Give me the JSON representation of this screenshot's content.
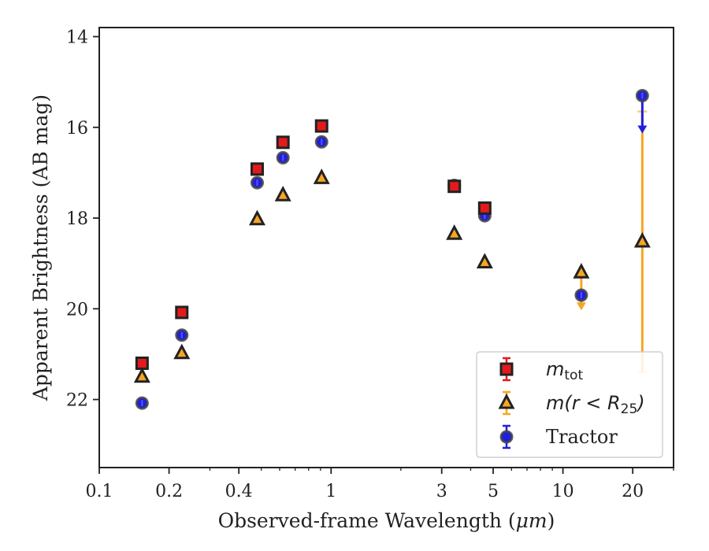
{
  "chart_data": {
    "type": "scatter",
    "xscale": "log",
    "xlabel_prefix": "Observed-frame Wavelength (",
    "xlabel_unit": "μm",
    "xlabel_suffix": ")",
    "ylabel": "Apparent Brightness (AB mag)",
    "xlim": [
      0.1,
      30
    ],
    "ylim": [
      23.5,
      13.8
    ],
    "y_inverted": true,
    "xticks": [
      {
        "value": 0.1,
        "label": "0.1"
      },
      {
        "value": 0.2,
        "label": "0.2"
      },
      {
        "value": 0.4,
        "label": "0.4"
      },
      {
        "value": 1,
        "label": "1"
      },
      {
        "value": 3,
        "label": "3"
      },
      {
        "value": 5,
        "label": "5"
      },
      {
        "value": 10,
        "label": "10"
      },
      {
        "value": 20,
        "label": "20"
      }
    ],
    "yticks": [
      {
        "value": 14,
        "label": "14"
      },
      {
        "value": 16,
        "label": "16"
      },
      {
        "value": 18,
        "label": "18"
      },
      {
        "value": 20,
        "label": "20"
      },
      {
        "value": 22,
        "label": "22"
      }
    ],
    "legend_position": "lower-right",
    "series": [
      {
        "key": "mtot",
        "legend": {
          "base": "m",
          "sub": "tot"
        },
        "marker": "square",
        "color": "#e31a1c",
        "edge": "#222222",
        "points": [
          {
            "x": 0.153,
            "y": 21.2
          },
          {
            "x": 0.227,
            "y": 20.08
          },
          {
            "x": 0.48,
            "y": 16.92
          },
          {
            "x": 0.62,
            "y": 16.33
          },
          {
            "x": 0.91,
            "y": 15.97
          },
          {
            "x": 3.4,
            "y": 17.3
          },
          {
            "x": 4.6,
            "y": 17.78
          }
        ]
      },
      {
        "key": "mr25",
        "legend": {
          "base": "m(r < R",
          "sub": "25",
          "tail": ")"
        },
        "marker": "triangle",
        "color": "#f5a623",
        "edge": "#222222",
        "points": [
          {
            "x": 0.153,
            "y": 21.5
          },
          {
            "x": 0.227,
            "y": 20.98
          },
          {
            "x": 0.48,
            "y": 18.03
          },
          {
            "x": 0.62,
            "y": 17.5
          },
          {
            "x": 0.91,
            "y": 17.12
          },
          {
            "x": 3.4,
            "y": 18.35
          },
          {
            "x": 4.6,
            "y": 18.98
          },
          {
            "x": 12.0,
            "y": 19.2,
            "upper_limit_to": 20.0
          },
          {
            "x": 22.0,
            "y": 18.52,
            "err_low": 15.65,
            "err_high": 21.4
          }
        ]
      },
      {
        "key": "tractor",
        "legend": {
          "base": "Tractor"
        },
        "marker": "circle",
        "color": "#1f1fe0",
        "edge": "#444444",
        "points": [
          {
            "x": 0.153,
            "y": 22.08
          },
          {
            "x": 0.227,
            "y": 20.58
          },
          {
            "x": 0.48,
            "y": 17.22
          },
          {
            "x": 0.62,
            "y": 16.67
          },
          {
            "x": 0.91,
            "y": 16.32
          },
          {
            "x": 3.4,
            "y": 17.28
          },
          {
            "x": 4.6,
            "y": 17.95
          },
          {
            "x": 12.0,
            "y": 19.7
          },
          {
            "x": 22.0,
            "y": 15.3,
            "upper_limit_to": 16.1
          }
        ]
      }
    ]
  }
}
